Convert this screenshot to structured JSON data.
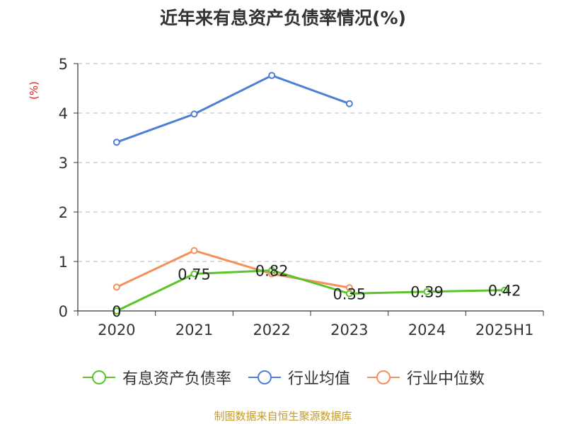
{
  "chart_data": {
    "type": "line",
    "title": "近年来有息资产负债率情况(%)",
    "ylabel": "(%)",
    "categories": [
      "2020",
      "2021",
      "2022",
      "2023",
      "2024",
      "2025H1"
    ],
    "ylim": [
      0,
      5
    ],
    "yticks": [
      "0",
      "1",
      "2",
      "3",
      "4",
      "5"
    ],
    "grid": true,
    "legend_position": "bottom",
    "series": [
      {
        "name": "有息资产负债率",
        "color": "#5bc42b",
        "values": [
          0,
          0.75,
          0.82,
          0.35,
          0.39,
          0.42
        ],
        "labels": [
          "0",
          "0.75",
          "0.82",
          "0.35",
          "0.39",
          "0.42"
        ]
      },
      {
        "name": "行业均值",
        "color": "#4e7fd8",
        "values": [
          3.41,
          3.98,
          4.76,
          4.19,
          null,
          null
        ]
      },
      {
        "name": "行业中位数",
        "color": "#f5905c",
        "values": [
          0.48,
          1.22,
          0.75,
          0.47,
          null,
          null
        ]
      }
    ]
  },
  "footer": {
    "source": "制图数据来自恒生聚源数据库"
  }
}
